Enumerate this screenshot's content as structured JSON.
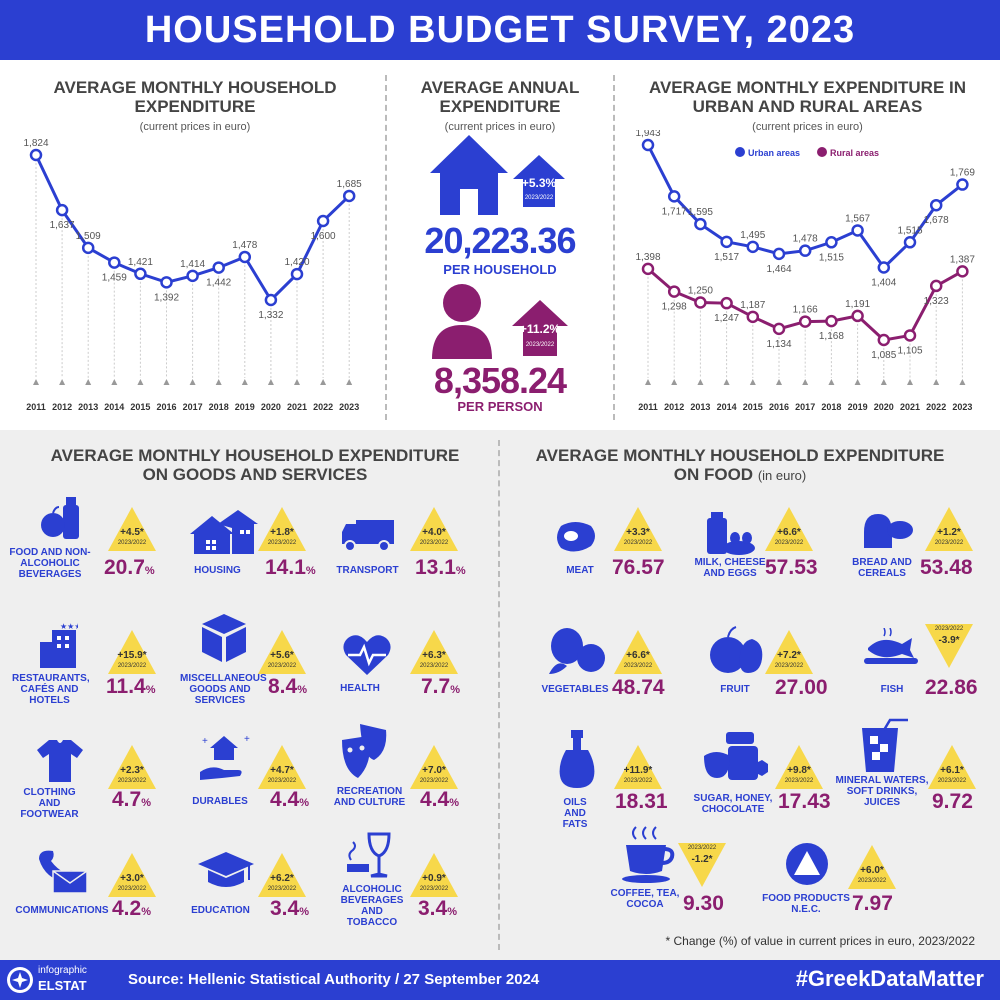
{
  "banner": {
    "title": "HOUSEHOLD BUDGET SURVEY, 2023"
  },
  "colors": {
    "blue": "#2b3fd1",
    "purple": "#8b1e6f",
    "yellow": "#f7d84a",
    "grey": "#efefef"
  },
  "chart_data": [
    {
      "type": "line",
      "title": "AVERAGE MONTHLY HOUSEHOLD EXPENDITURE",
      "subtitle": "(current prices in euro)",
      "x": [
        "2011",
        "2012",
        "2013",
        "2014",
        "2015",
        "2016",
        "2017",
        "2018",
        "2019",
        "2020",
        "2021",
        "2022",
        "2023"
      ],
      "series": [
        {
          "name": "Household",
          "values": [
            1824,
            1637,
            1509,
            1459,
            1421,
            1392,
            1414,
            1442,
            1478,
            1332,
            1420,
            1600,
            1685
          ]
        }
      ],
      "value_labels": [
        "1,824",
        "1,637",
        "1,509",
        "1,459",
        "1,421",
        "1,392",
        "1,414",
        "1,442",
        "1,478",
        "1,332",
        "1,420",
        "1,600",
        "1,685"
      ],
      "xlabel": "",
      "ylabel": ""
    },
    {
      "type": "line",
      "title": "AVERAGE MONTHLY EXPENDITURE IN URBAN AND RURAL AREAS",
      "subtitle": "(current prices in euro)",
      "x": [
        "2011",
        "2012",
        "2013",
        "2014",
        "2015",
        "2016",
        "2017",
        "2018",
        "2019",
        "2020",
        "2021",
        "2022",
        "2023"
      ],
      "series": [
        {
          "name": "Urban areas",
          "values": [
            1943,
            1717,
            1595,
            1517,
            1495,
            1464,
            1478,
            1515,
            1567,
            1404,
            1515,
            1678,
            1769
          ],
          "labels": [
            "1,943",
            "1,717",
            "1,595",
            "1,517",
            "1,495",
            "1,464",
            "1,478",
            "1,515",
            "1,567",
            "1,404",
            "1,515",
            "1,678",
            "1,769"
          ]
        },
        {
          "name": "Rural areas",
          "values": [
            1398,
            1298,
            1250,
            1247,
            1187,
            1134,
            1166,
            1168,
            1191,
            1085,
            1105,
            1323,
            1387
          ],
          "labels": [
            "1,398",
            "1,298",
            "1,250",
            "1,247",
            "1,187",
            "1,134",
            "1,166",
            "1,168",
            "1,191",
            "1,085",
            "1,105",
            "1,323",
            "1,387"
          ]
        }
      ],
      "legend": [
        "Urban areas",
        "Rural areas"
      ]
    }
  ],
  "annual": {
    "title": "AVERAGE ANNUAL EXPENDITURE",
    "subtitle": "(current prices in euro)",
    "household_value": "20,223.36",
    "household_label": "PER HOUSEHOLD",
    "household_change": "+5.3%",
    "person_value": "8,358.24",
    "person_label": "PER PERSON",
    "person_change": "+11.2%",
    "period": "2023/2022"
  },
  "goods": {
    "title_line1": "AVERAGE MONTHLY HOUSEHOLD EXPENDITURE",
    "title_line2": "ON GOODS AND SERVICES",
    "items": [
      {
        "label": "FOOD AND NON- ALCOHOLIC BEVERAGES",
        "value": "20.7",
        "unit": "%",
        "change": "+4.5*",
        "dir": "up",
        "period": "2023/2022"
      },
      {
        "label": "HOUSING",
        "value": "14.1",
        "unit": "%",
        "change": "+1.8*",
        "dir": "up",
        "period": "2023/2022"
      },
      {
        "label": "TRANSPORT",
        "value": "13.1",
        "unit": "%",
        "change": "+4.0*",
        "dir": "up",
        "period": "2023/2022"
      },
      {
        "label": "RESTAURANTS, CAFÉS AND HOTELS",
        "value": "11.4",
        "unit": "%",
        "change": "+15.9*",
        "dir": "up",
        "period": "2023/2022"
      },
      {
        "label": "MISCELLANEOUS GOODS AND SERVICES",
        "value": "8.4",
        "unit": "%",
        "change": "+5.6*",
        "dir": "up",
        "period": "2023/2022"
      },
      {
        "label": "HEALTH",
        "value": "7.7",
        "unit": "%",
        "change": "+6.3*",
        "dir": "up",
        "period": "2023/2022"
      },
      {
        "label": "CLOTHING AND FOOTWEAR",
        "value": "4.7",
        "unit": "%",
        "change": "+2.3*",
        "dir": "up",
        "period": "2023/2022"
      },
      {
        "label": "DURABLES",
        "value": "4.4",
        "unit": "%",
        "change": "+4.7*",
        "dir": "up",
        "period": "2023/2022"
      },
      {
        "label": "RECREATION AND CULTURE",
        "value": "4.4",
        "unit": "%",
        "change": "+7.0*",
        "dir": "up",
        "period": "2023/2022"
      },
      {
        "label": "COMMUNICATIONS",
        "value": "4.2",
        "unit": "%",
        "change": "+3.0*",
        "dir": "up",
        "period": "2023/2022"
      },
      {
        "label": "EDUCATION",
        "value": "3.4",
        "unit": "%",
        "change": "+6.2*",
        "dir": "up",
        "period": "2023/2022"
      },
      {
        "label": "ALCOHOLIC BEVERAGES AND TOBACCO",
        "value": "3.4",
        "unit": "%",
        "change": "+0.9*",
        "dir": "up",
        "period": "2023/2022"
      }
    ]
  },
  "food": {
    "title_line1": "AVERAGE MONTHLY HOUSEHOLD EXPENDITURE",
    "title_line2": "ON FOOD",
    "title_unit": "(in euro)",
    "items": [
      {
        "label": "MEAT",
        "value": "76.57",
        "change": "+3.3*",
        "dir": "up",
        "period": "2023/2022"
      },
      {
        "label": "MILK, CHEESE AND EGGS",
        "value": "57.53",
        "change": "+6.6*",
        "dir": "up",
        "period": "2023/2022"
      },
      {
        "label": "BREAD AND CEREALS",
        "value": "53.48",
        "change": "+1.2*",
        "dir": "up",
        "period": "2023/2022"
      },
      {
        "label": "VEGETABLES",
        "value": "48.74",
        "change": "+6.6*",
        "dir": "up",
        "period": "2023/2022"
      },
      {
        "label": "FRUIT",
        "value": "27.00",
        "change": "+7.2*",
        "dir": "up",
        "period": "2023/2022"
      },
      {
        "label": "FISH",
        "value": "22.86",
        "change": "-3.9*",
        "dir": "down",
        "period": "2023/2022"
      },
      {
        "label": "OILS AND FATS",
        "value": "18.31",
        "change": "+11.9*",
        "dir": "up",
        "period": "2023/2022"
      },
      {
        "label": "SUGAR, HONEY, CHOCOLATE",
        "value": "17.43",
        "change": "+9.8*",
        "dir": "up",
        "period": "2023/2022"
      },
      {
        "label": "MINERAL WATERS, SOFT DRINKS, JUICES",
        "value": "9.72",
        "change": "+6.1*",
        "dir": "up",
        "period": "2023/2022"
      },
      {
        "label": "COFFEE, TEA, COCOA",
        "value": "9.30",
        "change": "-1.2*",
        "dir": "down",
        "period": "2023/2022"
      },
      {
        "label": "FOOD PRODUCTS N.E.C.",
        "value": "7.97",
        "change": "+6.0*",
        "dir": "up",
        "period": "2023/2022"
      }
    ],
    "footnote": "* Change (%) of value in current prices in euro, 2023/2022"
  },
  "footer": {
    "logo_top": "infographic",
    "logo_bottom": "ELSTAT",
    "source": "Source: Hellenic Statistical Authority / 27 September 2024",
    "hashtag": "#GreekDataMatter"
  }
}
